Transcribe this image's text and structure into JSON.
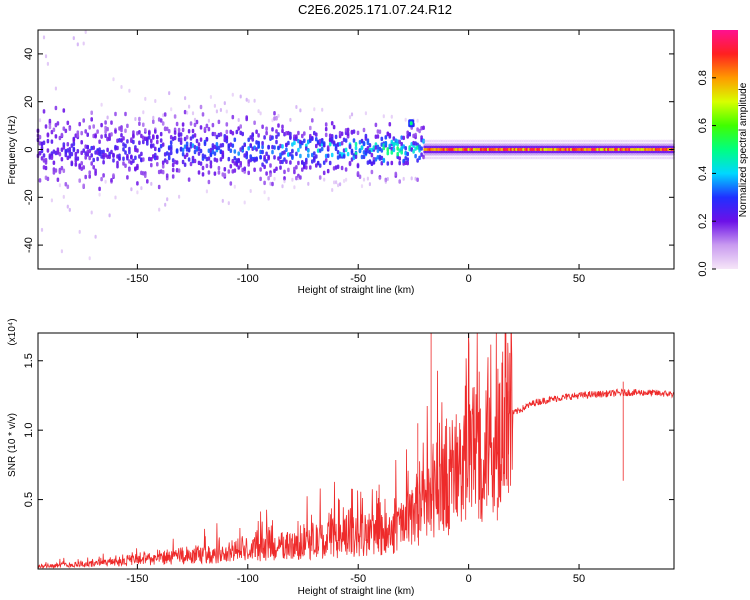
{
  "page": {
    "title": "C2E6.2025.171.07.24.R12"
  },
  "colors": {
    "background": "#ffffff",
    "snr_line": "#ee2a2a",
    "axis": "#000000"
  },
  "chart_data": [
    {
      "type": "heatmap",
      "xlabel": "Height of straight line (km)",
      "ylabel": "Frequency (Hz)",
      "xlim": [
        -195,
        93
      ],
      "ylim": [
        -50,
        50
      ],
      "x_ticks": [
        {
          "value": -150,
          "label": "-150"
        },
        {
          "value": -100,
          "label": "-100"
        },
        {
          "value": -50,
          "label": "-50"
        },
        {
          "value": 0,
          "label": "0"
        },
        {
          "value": 50,
          "label": "50"
        }
      ],
      "y_ticks": [
        {
          "value": -40,
          "label": "-40"
        },
        {
          "value": -20,
          "label": "-20"
        },
        {
          "value": 0,
          "label": "0"
        },
        {
          "value": 20,
          "label": "20"
        },
        {
          "value": 40,
          "label": "40"
        }
      ],
      "colorbar": {
        "label": "Normalized spectral amplitude",
        "range": [
          0,
          1
        ],
        "ticks": [
          {
            "value": 0,
            "label": "0.0"
          },
          {
            "value": 0.2,
            "label": "0.2"
          },
          {
            "value": 0.4,
            "label": "0.4"
          },
          {
            "value": 0.6,
            "label": "0.6"
          },
          {
            "value": 0.8,
            "label": "0.8"
          }
        ],
        "colormap": [
          "#f6e6f8",
          "#c99bf0",
          "#6c10e8",
          "#2030ff",
          "#00d8ff",
          "#00ff80",
          "#40ff00",
          "#d8ff00",
          "#ff9a00",
          "#ff2020",
          "#ff1090"
        ]
      },
      "features": {
        "noise_band_x": [
          -195,
          -20
        ],
        "noise_band_halfwidth_hz": 12,
        "line_x": [
          -20,
          93
        ],
        "line_frequency_hz": 0,
        "line_amplitude": 0.9,
        "feature_point": {
          "x": -26,
          "y": 11
        }
      }
    },
    {
      "type": "line",
      "xlabel": "Height of straight line (km)",
      "ylabel": "SNR (10 * v/v)",
      "yscale_note": "(x10⁴)",
      "xlim": [
        -195,
        93
      ],
      "ylim": [
        0,
        1.7
      ],
      "x_ticks": [
        {
          "value": -150,
          "label": "-150"
        },
        {
          "value": -100,
          "label": "-100"
        },
        {
          "value": -50,
          "label": "-50"
        },
        {
          "value": 0,
          "label": "0"
        },
        {
          "value": 50,
          "label": "50"
        }
      ],
      "y_ticks": [
        {
          "value": 0.5,
          "label": "0.5"
        },
        {
          "value": 1.0,
          "label": "1.0"
        },
        {
          "value": 1.5,
          "label": "1.5"
        }
      ],
      "series": [
        {
          "envelope": {
            "x": [
              -195,
              -170,
              -150,
              -130,
              -110,
              -90,
              -70,
              -50,
              -40,
              -30,
              -25,
              -20,
              -15,
              -10,
              -5,
              0,
              5,
              10,
              15,
              20,
              30,
              40,
              50,
              60,
              70,
              80,
              93
            ],
            "y": [
              0.02,
              0.04,
              0.07,
              0.09,
              0.12,
              0.16,
              0.2,
              0.24,
              0.28,
              0.33,
              0.42,
              0.5,
              0.58,
              0.66,
              0.74,
              0.82,
              0.9,
              0.98,
              1.06,
              1.12,
              1.2,
              1.23,
              1.25,
              1.26,
              1.27,
              1.27,
              1.26
            ]
          },
          "spikes": [
            {
              "x": -17,
              "y": 1.7
            },
            {
              "x": -23,
              "y": 1.05
            },
            {
              "x": 13,
              "y": 0.35
            },
            {
              "x": 18,
              "y": 1.28
            },
            {
              "x": 70,
              "y": 1.35
            }
          ]
        }
      ]
    }
  ]
}
